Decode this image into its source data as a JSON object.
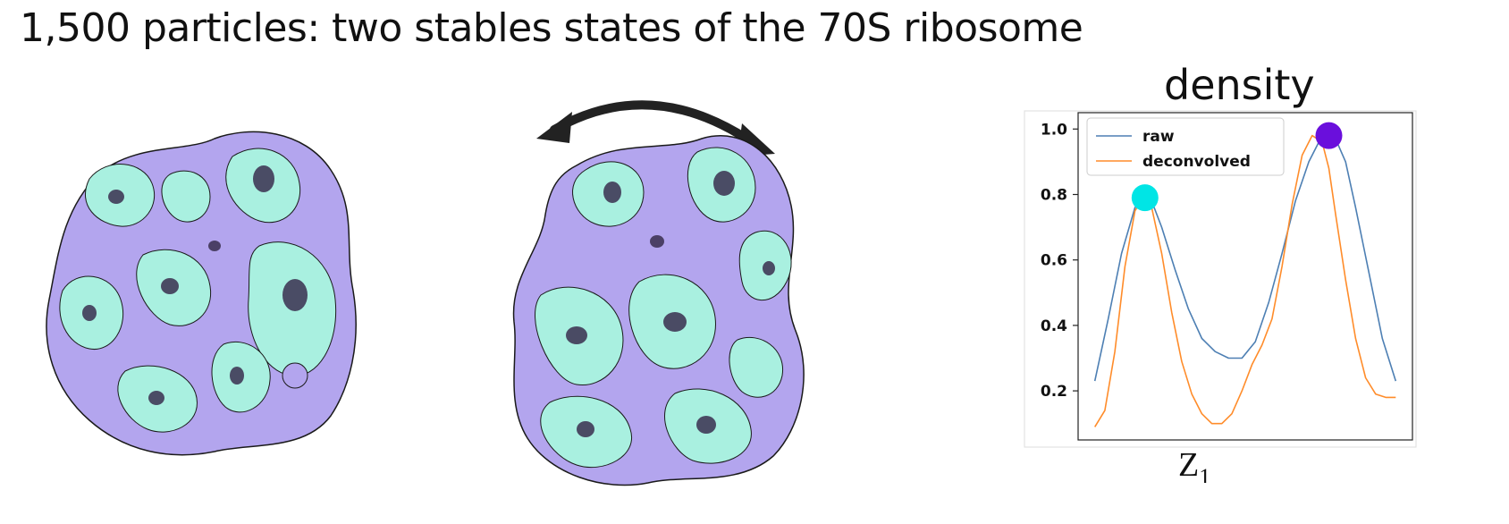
{
  "title": "1,500 particles: two stables states of the 70S ribosome",
  "density_label": "density",
  "colors": {
    "state_a": "#a9f0e0",
    "state_b": "#b3a5ee",
    "outline": "#1a1a1a",
    "raw": "#4d7fb3",
    "deconvolved": "#ff8c2a",
    "marker_low": "#00e5e5",
    "marker_high": "#6a0fdc"
  },
  "icons": {
    "rotation_arrow": "double-headed-curved-arrow-icon"
  },
  "chart_data": {
    "type": "line",
    "title": "density",
    "xlabel": "Z",
    "xlabel_subscript": "1",
    "ylabel": "",
    "xlim": [
      0,
      1
    ],
    "ylim": [
      0.05,
      1.05
    ],
    "yticks": [
      "1.0",
      "0.8",
      "0.6",
      "0.4",
      "0.2"
    ],
    "ytick_values": [
      1.0,
      0.8,
      0.6,
      0.4,
      0.2
    ],
    "grid": false,
    "legend": "top-left",
    "series": [
      {
        "name": "raw",
        "color": "#4d7fb3",
        "x": [
          0.05,
          0.09,
          0.13,
          0.17,
          0.2,
          0.22,
          0.25,
          0.29,
          0.33,
          0.37,
          0.41,
          0.45,
          0.49,
          0.53,
          0.57,
          0.61,
          0.65,
          0.69,
          0.72,
          0.75,
          0.77,
          0.8,
          0.83,
          0.87,
          0.91,
          0.95
        ],
        "y": [
          0.23,
          0.42,
          0.62,
          0.76,
          0.8,
          0.78,
          0.7,
          0.57,
          0.45,
          0.36,
          0.32,
          0.3,
          0.3,
          0.35,
          0.47,
          0.62,
          0.78,
          0.9,
          0.96,
          0.98,
          0.97,
          0.9,
          0.76,
          0.56,
          0.36,
          0.23
        ]
      },
      {
        "name": "deconvolved",
        "color": "#ff8c2a",
        "x": [
          0.05,
          0.08,
          0.11,
          0.14,
          0.17,
          0.2,
          0.22,
          0.25,
          0.28,
          0.31,
          0.34,
          0.37,
          0.4,
          0.43,
          0.46,
          0.49,
          0.52,
          0.55,
          0.58,
          0.61,
          0.64,
          0.67,
          0.7,
          0.73,
          0.75,
          0.77,
          0.8,
          0.83,
          0.86,
          0.89,
          0.92,
          0.95
        ],
        "y": [
          0.09,
          0.14,
          0.32,
          0.58,
          0.75,
          0.8,
          0.76,
          0.62,
          0.44,
          0.29,
          0.19,
          0.13,
          0.1,
          0.1,
          0.13,
          0.2,
          0.28,
          0.34,
          0.42,
          0.58,
          0.77,
          0.92,
          0.98,
          0.96,
          0.88,
          0.74,
          0.54,
          0.36,
          0.24,
          0.19,
          0.18,
          0.18
        ]
      }
    ],
    "markers": [
      {
        "x": 0.2,
        "y": 0.79,
        "color": "#00e5e5"
      },
      {
        "x": 0.75,
        "y": 0.98,
        "color": "#6a0fdc"
      }
    ]
  }
}
